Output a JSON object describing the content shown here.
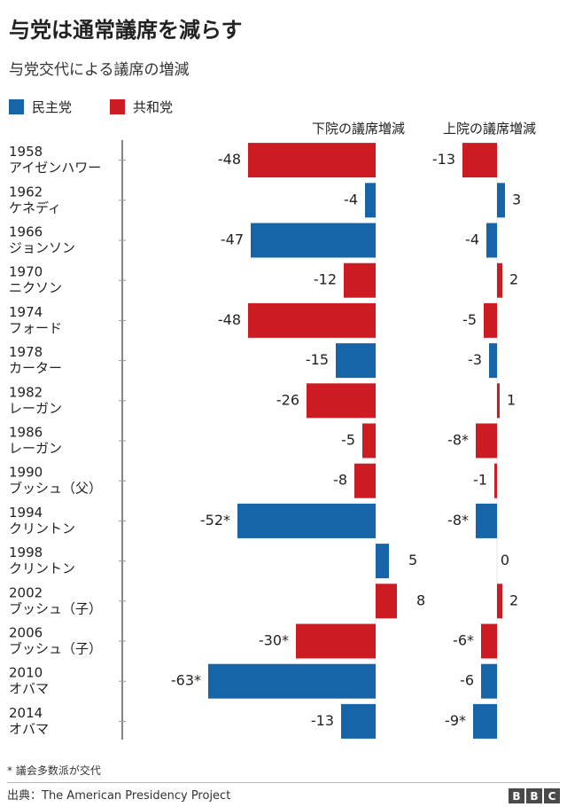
{
  "title": "与党は通常議席を減らす",
  "subtitle": "与党交代による議席の増減",
  "legend": {
    "democrat": "民主党",
    "republican": "共和党"
  },
  "colors": {
    "democrat": "#1565a8",
    "republican": "#cc1b22",
    "axis": "#333333",
    "tick": "#bbbbbb"
  },
  "columns": {
    "house": "下院の議席増減",
    "senate": "上院の議席増減"
  },
  "footnote": "* 議会多数派が交代",
  "source": "出典：The American Presidency Project",
  "logo": [
    "B",
    "B",
    "C"
  ],
  "chart_data": {
    "type": "bar",
    "orientation": "horizontal",
    "title": "与党は通常議席を減らす",
    "subtitle": "与党交代による議席の増減",
    "categories": [
      {
        "year": "1958",
        "president": "アイゼンハワー"
      },
      {
        "year": "1962",
        "president": "ケネディ"
      },
      {
        "year": "1966",
        "president": "ジョンソン"
      },
      {
        "year": "1970",
        "president": "ニクソン"
      },
      {
        "year": "1974",
        "president": "フォード"
      },
      {
        "year": "1978",
        "president": "カーター"
      },
      {
        "year": "1982",
        "president": "レーガン"
      },
      {
        "year": "1986",
        "president": "レーガン"
      },
      {
        "year": "1990",
        "president": "ブッシュ（父）"
      },
      {
        "year": "1994",
        "president": "クリントン"
      },
      {
        "year": "1998",
        "president": "クリントン"
      },
      {
        "year": "2002",
        "president": "ブッシュ（子）"
      },
      {
        "year": "2006",
        "president": "ブッシュ（子）"
      },
      {
        "year": "2010",
        "president": "オバマ"
      },
      {
        "year": "2014",
        "president": "オバマ"
      }
    ],
    "party": [
      "R",
      "D",
      "D",
      "R",
      "R",
      "D",
      "R",
      "R",
      "R",
      "D",
      "D",
      "R",
      "R",
      "D",
      "D"
    ],
    "series": [
      {
        "name": "下院の議席増減",
        "values": [
          -48,
          -4,
          -47,
          -12,
          -48,
          -15,
          -26,
          -5,
          -8,
          -52,
          5,
          8,
          -30,
          -63,
          -13
        ],
        "labels": [
          "-48",
          "-4",
          "-47",
          "-12",
          "-48",
          "-15",
          "-26",
          "-5",
          "-8",
          "-52*",
          "5",
          "8",
          "-30*",
          "-63*",
          "-13"
        ]
      },
      {
        "name": "上院の議席増減",
        "values": [
          -13,
          3,
          -4,
          2,
          -5,
          -3,
          1,
          -8,
          -1,
          -8,
          0,
          2,
          -6,
          -6,
          -9
        ],
        "labels": [
          "-13",
          "3",
          "-4",
          "2",
          "-5",
          "-3",
          "1",
          "-8*",
          "-1",
          "-8*",
          "0",
          "2",
          "-6*",
          "-6",
          "-9*"
        ]
      }
    ],
    "legend": [
      "民主党",
      "共和党"
    ],
    "annotation": "* 議会多数派が交代"
  }
}
